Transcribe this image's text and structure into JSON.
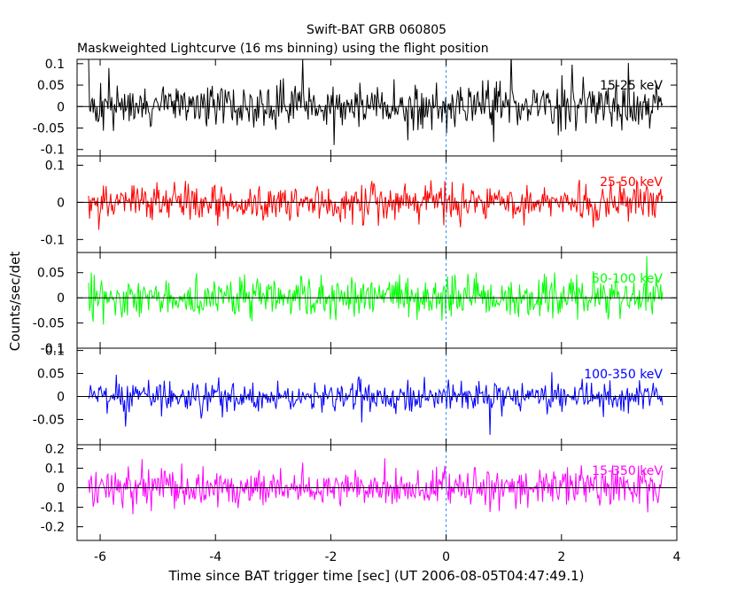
{
  "chart_data": {
    "type": "line",
    "title": "Swift-BAT GRB 060805",
    "subtitle": "Maskweighted Lightcurve (16 ms binning) using the flight position",
    "xlabel": "Time since BAT trigger time [sec] (UT 2006-08-05T04:47:49.1)",
    "ylabel": "Counts/sec/det",
    "xlim": [
      -6.4,
      4.0
    ],
    "xticks": [
      -6,
      -4,
      -2,
      0,
      2,
      4
    ],
    "xtick_labels": [
      "-6",
      "-4",
      "-2",
      "0",
      "2",
      "4"
    ],
    "trigger_marker_x": 0,
    "data_range": [
      -6.2,
      3.75
    ],
    "bin_width": 0.016,
    "panels": [
      {
        "name": "15-25 keV",
        "color": "#000000",
        "ylim": [
          -0.115,
          0.11
        ],
        "yticks": [
          -0.1,
          -0.05,
          0,
          0.05,
          0.1
        ],
        "ytick_labels": [
          "-0.1",
          "-0.05",
          "0",
          "0.05",
          "0.1"
        ],
        "noise_amplitude": 0.045
      },
      {
        "name": "25-50 keV",
        "color": "#ff0000",
        "ylim": [
          -0.135,
          0.125
        ],
        "yticks": [
          -0.1,
          0,
          0.1
        ],
        "ytick_labels": [
          "-0.1",
          "0",
          "0.1"
        ],
        "noise_amplitude": 0.045
      },
      {
        "name": "50-100 keV",
        "color": "#00ff00",
        "ylim": [
          -0.1,
          0.09
        ],
        "yticks": [
          -0.1,
          -0.05,
          0,
          0.05
        ],
        "ytick_labels": [
          "-0.1",
          "-0.05",
          "0",
          "0.05"
        ],
        "noise_amplitude": 0.035
      },
      {
        "name": "100-350 keV",
        "color": "#0000ff",
        "ylim": [
          -0.105,
          0.105
        ],
        "yticks": [
          -0.05,
          0,
          0.05,
          0.1
        ],
        "ytick_labels": [
          "-0.05",
          "0",
          "0.05",
          "0.1"
        ],
        "noise_amplitude": 0.028
      },
      {
        "name": "15-350 keV",
        "color": "#ff00ff",
        "ylim": [
          -0.27,
          0.22
        ],
        "yticks": [
          -0.2,
          -0.1,
          0,
          0.1,
          0.2
        ],
        "ytick_labels": [
          "-0.2",
          "-0.1",
          "0",
          "0.1",
          "0.2"
        ],
        "noise_amplitude": 0.085
      }
    ]
  }
}
